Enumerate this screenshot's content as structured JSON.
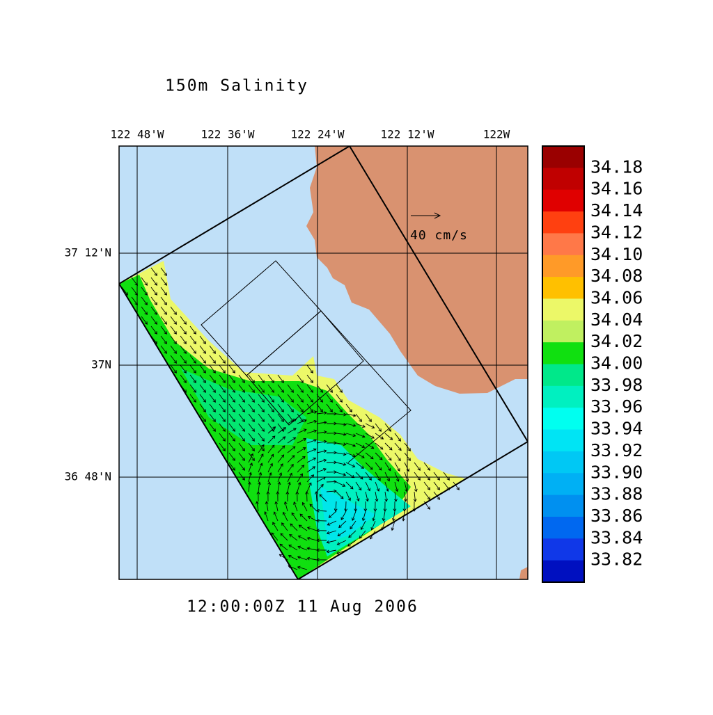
{
  "title": "150m Salinity",
  "time_label": "12:00:00Z  11 Aug 2006",
  "vector_scale_label": "40 cm/s",
  "lon_labels": [
    "122 48'W",
    "122 36'W",
    "122 24'W",
    "122 12'W",
    "122W"
  ],
  "lat_labels": [
    "37 12'N",
    "37N",
    "36 48'N"
  ],
  "colorbar": {
    "labels": [
      "34.18",
      "34.16",
      "34.14",
      "34.12",
      "34.10",
      "34.08",
      "34.06",
      "34.04",
      "34.02",
      "34.00",
      "33.98",
      "33.96",
      "33.94",
      "33.92",
      "33.90",
      "33.88",
      "33.86",
      "33.84",
      "33.82"
    ],
    "colors": [
      "#9a0000",
      "#c00000",
      "#e00000",
      "#ff4010",
      "#ff7848",
      "#ff9a28",
      "#ffc000",
      "#ecf868",
      "#c0f060",
      "#10e010",
      "#00e88a",
      "#00f0c0",
      "#00fff0",
      "#00e4f4",
      "#00c8f4",
      "#00b0f4",
      "#0090f0",
      "#0068f0",
      "#1038e8",
      "#0010c0"
    ]
  }
}
